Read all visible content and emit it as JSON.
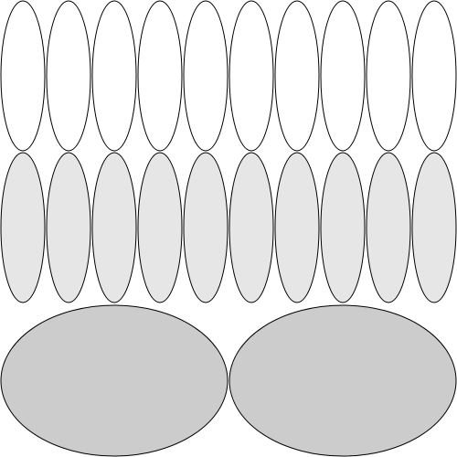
{
  "colors": {
    "background": "#ffffff",
    "stroke": "#000000",
    "row1_fill": "#ffffff",
    "row2_fill": "#e6e6e6",
    "row3_fill": "#cccccc"
  },
  "rows": [
    {
      "name": "row-1",
      "count": 10,
      "fill_key": "row1_fill"
    },
    {
      "name": "row-2",
      "count": 10,
      "fill_key": "row2_fill"
    },
    {
      "name": "row-3",
      "count": 2,
      "fill_key": "row3_fill"
    }
  ]
}
